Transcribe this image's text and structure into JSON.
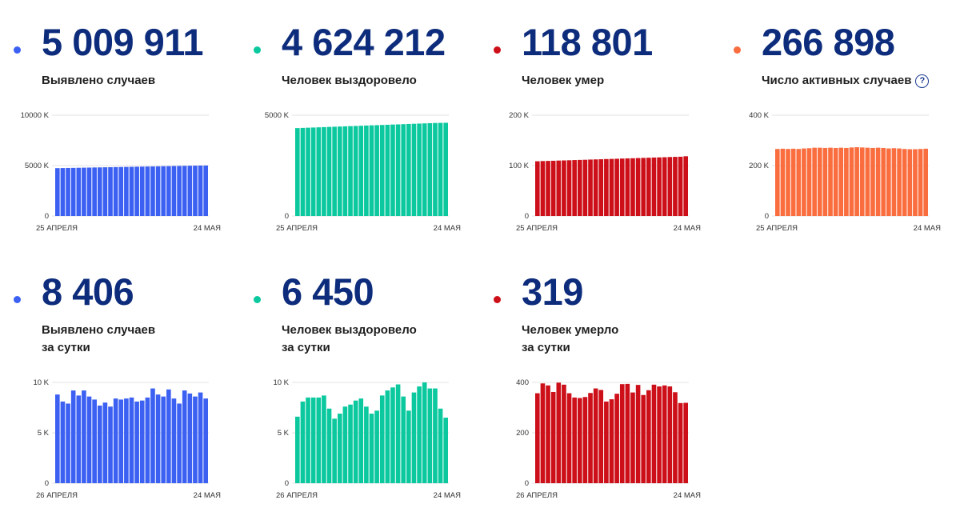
{
  "colors": {
    "blue": "#3c61f2",
    "green": "#0bc89e",
    "red": "#cc0f18",
    "orange": "#f96d3e",
    "number": "#0d2c7c"
  },
  "cards": [
    {
      "value": "5 009 911",
      "label_line1": "Выявлено случаев",
      "label_line2": ""
    },
    {
      "value": "4 624 212",
      "label_line1": "Человек выздоровело",
      "label_line2": ""
    },
    {
      "value": "118 801",
      "label_line1": "Человек умер",
      "label_line2": ""
    },
    {
      "value": "266 898",
      "label_line1": "Число активных случаев",
      "label_line2": "",
      "help_icon": "help-icon",
      "help_glyph": "?"
    },
    {
      "value": "8 406",
      "label_line1": "Выявлено случаев",
      "label_line2": "за сутки"
    },
    {
      "value": "6 450",
      "label_line1": "Человек выздоровело",
      "label_line2": "за сутки"
    },
    {
      "value": "319",
      "label_line1": "Человек умерло",
      "label_line2": "за сутки"
    }
  ],
  "chart_data": [
    {
      "type": "bar",
      "color": "blue",
      "x_start_label": "25 АПРЕЛЯ",
      "x_end_label": "24 МАЯ",
      "yticks": [
        0,
        5000,
        10000
      ],
      "ytick_labels": [
        "0",
        "5000 K",
        "10000 K"
      ],
      "ylim": [
        0,
        10000
      ],
      "values": [
        4747,
        4756,
        4766,
        4775,
        4785,
        4795,
        4804,
        4814,
        4823,
        4833,
        4843,
        4852,
        4862,
        4871,
        4881,
        4891,
        4900,
        4910,
        4919,
        4929,
        4939,
        4948,
        4958,
        4967,
        4977,
        4987,
        4996,
        5006,
        5010
      ]
    },
    {
      "type": "bar",
      "color": "green",
      "x_start_label": "25 АПРЕЛЯ",
      "x_end_label": "24 МАЯ",
      "yticks": [
        0,
        5000
      ],
      "ytick_labels": [
        "0",
        "5000 K"
      ],
      "ylim": [
        0,
        5000
      ],
      "values": [
        4360,
        4370,
        4380,
        4389,
        4399,
        4409,
        4419,
        4428,
        4438,
        4448,
        4458,
        4467,
        4477,
        4487,
        4497,
        4506,
        4516,
        4526,
        4536,
        4545,
        4555,
        4565,
        4575,
        4584,
        4594,
        4604,
        4614,
        4620,
        4624
      ]
    },
    {
      "type": "bar",
      "color": "red",
      "x_start_label": "25 АПРЕЛЯ",
      "x_end_label": "24 МАЯ",
      "yticks": [
        0,
        100,
        200
      ],
      "ytick_labels": [
        "0",
        "100 K",
        "200 K"
      ],
      "ylim": [
        0,
        200
      ],
      "values": [
        108.6,
        109.0,
        109.3,
        109.6,
        110.0,
        110.3,
        110.6,
        111.0,
        111.3,
        111.6,
        112.0,
        112.3,
        112.6,
        113.0,
        113.3,
        113.6,
        114.0,
        114.3,
        114.6,
        115.0,
        115.3,
        115.6,
        116.0,
        116.3,
        116.6,
        117.0,
        117.3,
        117.6,
        118.5
      ]
    },
    {
      "type": "bar",
      "color": "orange",
      "x_start_label": "25 АПРЕЛЯ",
      "x_end_label": "24 МАЯ",
      "yticks": [
        0,
        200,
        400
      ],
      "ytick_labels": [
        "0",
        "200 K",
        "400 K"
      ],
      "ylim": [
        0,
        400
      ],
      "values": [
        266,
        267,
        266,
        267,
        266,
        268,
        269,
        271,
        271,
        270,
        271,
        270,
        271,
        270,
        272,
        273,
        272,
        271,
        270,
        271,
        270,
        268,
        269,
        268,
        266,
        265,
        265,
        266,
        267
      ]
    },
    {
      "type": "bar",
      "color": "blue",
      "x_start_label": "26 АПРЕЛЯ",
      "x_end_label": "24 МАЯ",
      "yticks": [
        0,
        5,
        10
      ],
      "ytick_labels": [
        "0",
        "5 K",
        "10 K"
      ],
      "ylim": [
        0,
        10
      ],
      "values": [
        8.8,
        8.1,
        7.9,
        9.2,
        8.7,
        9.2,
        8.6,
        8.3,
        7.7,
        8.0,
        7.6,
        8.4,
        8.3,
        8.4,
        8.5,
        8.1,
        8.2,
        8.5,
        9.4,
        8.8,
        8.6,
        9.3,
        8.4,
        7.9,
        9.2,
        8.9,
        8.6,
        9.0,
        8.4
      ]
    },
    {
      "type": "bar",
      "color": "green",
      "x_start_label": "26 АПРЕЛЯ",
      "x_end_label": "24 МАЯ",
      "yticks": [
        0,
        5,
        10
      ],
      "ytick_labels": [
        "0",
        "5 K",
        "10 K"
      ],
      "ylim": [
        0,
        10
      ],
      "values": [
        6.6,
        8.1,
        8.5,
        8.5,
        8.5,
        8.7,
        7.4,
        6.4,
        6.9,
        7.6,
        7.8,
        8.2,
        8.4,
        7.6,
        6.9,
        7.2,
        8.7,
        9.2,
        9.5,
        9.8,
        8.6,
        7.2,
        9.0,
        9.6,
        10.0,
        9.4,
        9.4,
        7.4,
        6.5
      ]
    },
    {
      "type": "bar",
      "color": "red",
      "x_start_label": "26 АПРЕЛЯ",
      "x_end_label": "24 МАЯ",
      "yticks": [
        0,
        200,
        400
      ],
      "ytick_labels": [
        "0",
        "200",
        "400"
      ],
      "ylim": [
        0,
        400
      ],
      "values": [
        357,
        396,
        388,
        362,
        399,
        391,
        357,
        340,
        338,
        342,
        358,
        376,
        370,
        324,
        333,
        355,
        393,
        394,
        360,
        390,
        350,
        369,
        391,
        384,
        388,
        384,
        361,
        318,
        319
      ]
    }
  ]
}
